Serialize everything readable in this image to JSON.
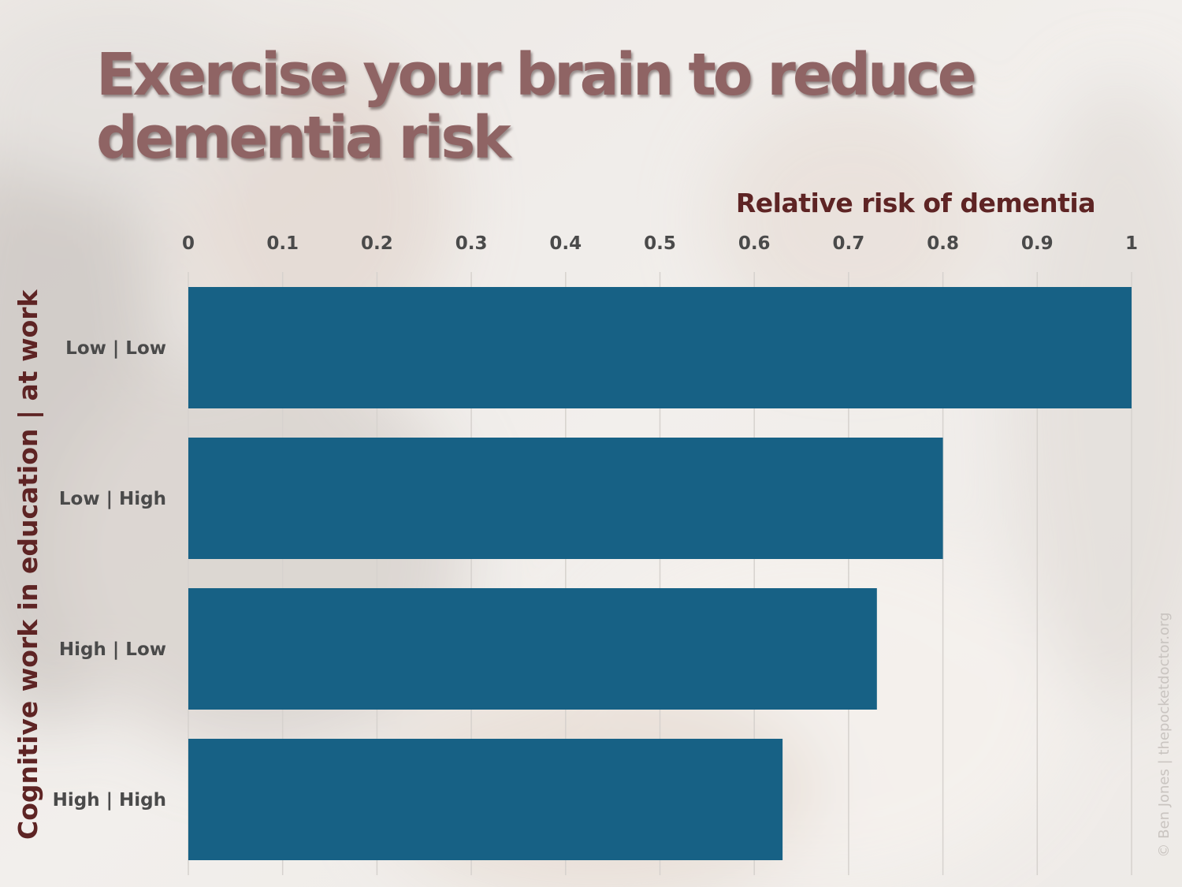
{
  "chart_data": {
    "type": "bar",
    "orientation": "horizontal",
    "title": "Exercise your brain to reduce dementia risk",
    "xlabel": "Relative risk of dementia",
    "ylabel": "Cognitive work in education | at work",
    "xlim": [
      0,
      1
    ],
    "x_ticks": [
      "0",
      "0.1",
      "0.2",
      "0.3",
      "0.4",
      "0.5",
      "0.6",
      "0.7",
      "0.8",
      "0.9",
      "1"
    ],
    "x_axis_position": "top",
    "categories": [
      "Low | Low",
      "Low | High",
      "High | Low",
      "High | High"
    ],
    "values": [
      1.0,
      0.8,
      0.73,
      0.63
    ],
    "grid": true,
    "legend": "none"
  },
  "credit": "© Ben Jones | thepocketdoctor.org",
  "colors": {
    "bar": "#176185",
    "title": "#8f6464",
    "axis_title": "#5e2424",
    "tick_text": "#4a4a4a",
    "gridline": "#d6d2ce",
    "background": "#eeeae6"
  }
}
